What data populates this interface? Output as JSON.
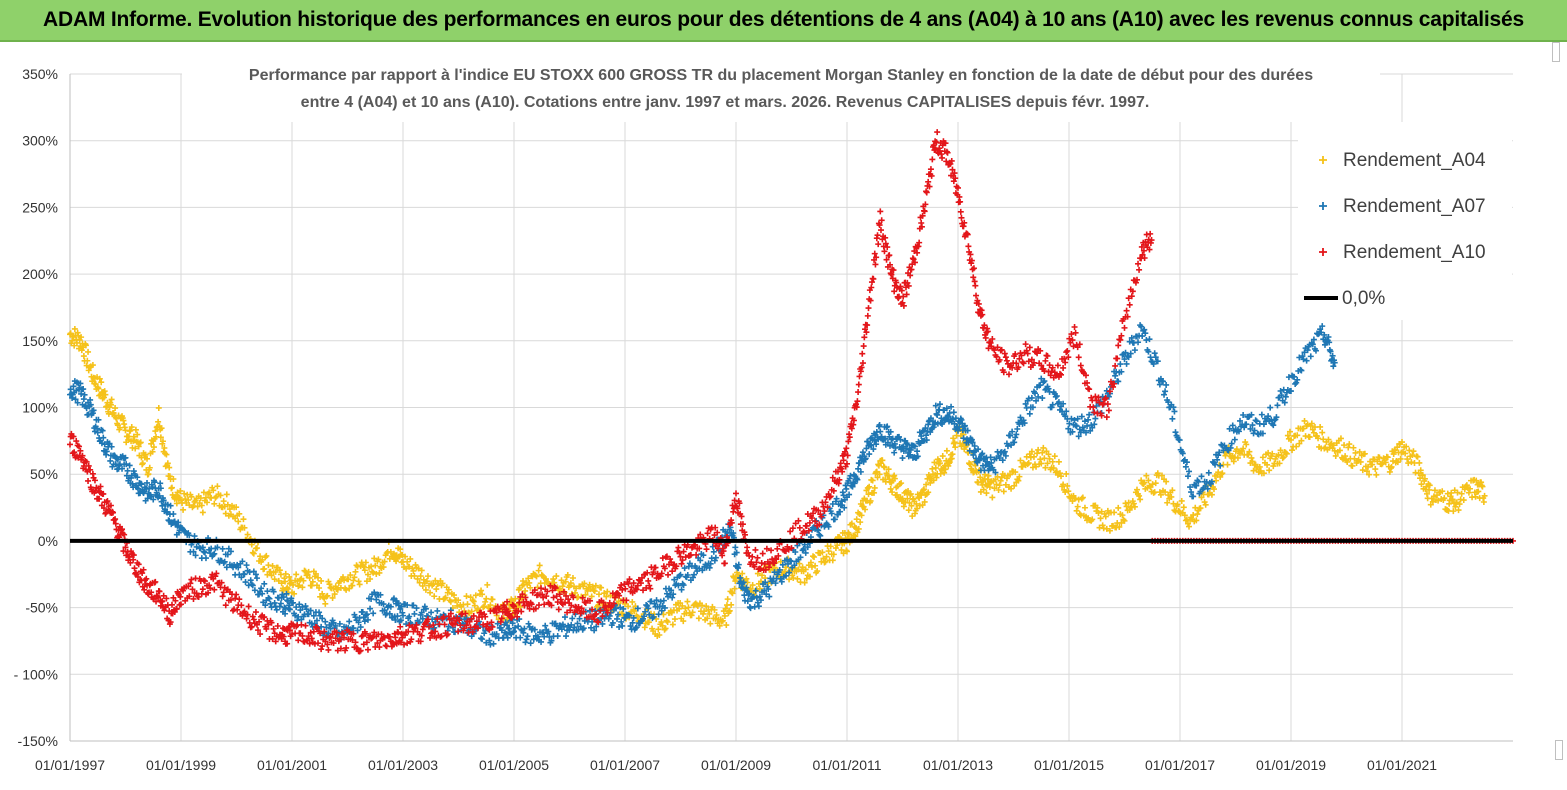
{
  "header": {
    "title": "ADAM Informe. Evolution historique des performances en euros pour des détentions de 4 ans (A04) à 10 ans (A10) avec les revenus connus capitalisés"
  },
  "chart_data": {
    "type": "scatter",
    "title_lines": [
      "Performance par rapport à l'indice EU STOXX 600 GROSS TR  du placement Morgan Stanley en fonction de la date de début pour des durées",
      "entre 4 (A04) et 10 ans (A10). Cotations entre janv. 1997 et mars. 2026. Revenus CAPITALISES depuis févr. 1997."
    ],
    "ylim": [
      -150,
      350
    ],
    "yticks": [
      350,
      300,
      250,
      200,
      150,
      100,
      50,
      0,
      -50,
      -100,
      -150
    ],
    "ytick_labels": [
      "350%",
      "300%",
      "250%",
      "200%",
      "150%",
      "100%",
      "50%",
      "0%",
      "-50%",
      "- 100%",
      "-150%"
    ],
    "xlim": [
      1997.0,
      2023.0
    ],
    "xticks": [
      1997,
      1999,
      2001,
      2003,
      2005,
      2007,
      2009,
      2011,
      2013,
      2015,
      2017,
      2019,
      2021
    ],
    "xtick_labels": [
      "01/01/1997",
      "01/01/1999",
      "01/01/2001",
      "01/01/2003",
      "01/01/2005",
      "01/01/2007",
      "01/01/2009",
      "01/01/2011",
      "01/01/2013",
      "01/01/2015",
      "01/01/2017",
      "01/01/2019",
      "01/01/2021"
    ],
    "legend_position": "top-right",
    "zero_line_label": "0,0%",
    "series": [
      {
        "name": "Rendement_A04",
        "color": "#f5c21b",
        "points": [
          [
            1997.0,
            155
          ],
          [
            1997.2,
            150
          ],
          [
            1997.4,
            125
          ],
          [
            1997.6,
            110
          ],
          [
            1997.8,
            95
          ],
          [
            1998.0,
            82
          ],
          [
            1998.2,
            75
          ],
          [
            1998.4,
            55
          ],
          [
            1998.6,
            95
          ],
          [
            1998.8,
            45
          ],
          [
            1999.0,
            30
          ],
          [
            1999.3,
            25
          ],
          [
            1999.6,
            35
          ],
          [
            1999.9,
            25
          ],
          [
            2000.2,
            5
          ],
          [
            2000.5,
            -15
          ],
          [
            2000.8,
            -30
          ],
          [
            2001.0,
            -35
          ],
          [
            2001.3,
            -25
          ],
          [
            2001.6,
            -40
          ],
          [
            2001.9,
            -30
          ],
          [
            2002.2,
            -25
          ],
          [
            2002.5,
            -20
          ],
          [
            2002.8,
            -5
          ],
          [
            2003.0,
            -15
          ],
          [
            2003.3,
            -25
          ],
          [
            2003.6,
            -35
          ],
          [
            2003.9,
            -45
          ],
          [
            2004.2,
            -50
          ],
          [
            2004.5,
            -40
          ],
          [
            2004.8,
            -55
          ],
          [
            2005.0,
            -50
          ],
          [
            2005.2,
            -35
          ],
          [
            2005.5,
            -25
          ],
          [
            2005.8,
            -30
          ],
          [
            2006.1,
            -35
          ],
          [
            2006.4,
            -40
          ],
          [
            2006.7,
            -45
          ],
          [
            2007.0,
            -50
          ],
          [
            2007.3,
            -55
          ],
          [
            2007.6,
            -65
          ],
          [
            2007.9,
            -55
          ],
          [
            2008.2,
            -50
          ],
          [
            2008.5,
            -55
          ],
          [
            2008.8,
            -60
          ],
          [
            2009.0,
            -25
          ],
          [
            2009.3,
            -35
          ],
          [
            2009.6,
            -25
          ],
          [
            2009.9,
            -20
          ],
          [
            2010.2,
            -25
          ],
          [
            2010.5,
            -15
          ],
          [
            2010.8,
            -5
          ],
          [
            2011.0,
            0
          ],
          [
            2011.2,
            15
          ],
          [
            2011.4,
            35
          ],
          [
            2011.6,
            55
          ],
          [
            2011.8,
            45
          ],
          [
            2012.0,
            35
          ],
          [
            2012.2,
            25
          ],
          [
            2012.4,
            35
          ],
          [
            2012.6,
            55
          ],
          [
            2012.8,
            60
          ],
          [
            2013.0,
            80
          ],
          [
            2013.2,
            65
          ],
          [
            2013.4,
            45
          ],
          [
            2013.6,
            40
          ],
          [
            2013.9,
            45
          ],
          [
            2014.2,
            55
          ],
          [
            2014.5,
            65
          ],
          [
            2014.8,
            55
          ],
          [
            2015.1,
            30
          ],
          [
            2015.4,
            20
          ],
          [
            2015.7,
            15
          ],
          [
            2016.0,
            20
          ],
          [
            2016.3,
            40
          ],
          [
            2016.6,
            45
          ],
          [
            2016.9,
            30
          ],
          [
            2017.2,
            15
          ],
          [
            2017.5,
            35
          ],
          [
            2017.8,
            60
          ],
          [
            2018.1,
            70
          ],
          [
            2018.4,
            55
          ],
          [
            2018.7,
            60
          ],
          [
            2019.0,
            75
          ],
          [
            2019.3,
            85
          ],
          [
            2019.6,
            75
          ],
          [
            2019.9,
            70
          ],
          [
            2020.2,
            60
          ],
          [
            2020.5,
            55
          ],
          [
            2020.8,
            60
          ],
          [
            2021.0,
            70
          ],
          [
            2021.3,
            55
          ],
          [
            2021.5,
            35
          ],
          [
            2021.8,
            30
          ],
          [
            2022.0,
            30
          ],
          [
            2022.3,
            40
          ],
          [
            2022.5,
            35
          ]
        ]
      },
      {
        "name": "Rendement_A07",
        "color": "#1f77b4",
        "points": [
          [
            1997.0,
            115
          ],
          [
            1997.2,
            110
          ],
          [
            1997.4,
            95
          ],
          [
            1997.6,
            75
          ],
          [
            1997.8,
            60
          ],
          [
            1998.0,
            55
          ],
          [
            1998.2,
            45
          ],
          [
            1998.4,
            35
          ],
          [
            1998.6,
            40
          ],
          [
            1998.8,
            20
          ],
          [
            1999.0,
            5
          ],
          [
            1999.3,
            -5
          ],
          [
            1999.6,
            -5
          ],
          [
            1999.9,
            -15
          ],
          [
            2000.2,
            -25
          ],
          [
            2000.5,
            -40
          ],
          [
            2000.8,
            -45
          ],
          [
            2001.0,
            -50
          ],
          [
            2001.3,
            -55
          ],
          [
            2001.6,
            -65
          ],
          [
            2001.9,
            -70
          ],
          [
            2002.2,
            -60
          ],
          [
            2002.5,
            -45
          ],
          [
            2002.8,
            -50
          ],
          [
            2003.0,
            -55
          ],
          [
            2003.3,
            -55
          ],
          [
            2003.6,
            -60
          ],
          [
            2003.9,
            -60
          ],
          [
            2004.2,
            -65
          ],
          [
            2004.5,
            -70
          ],
          [
            2004.8,
            -70
          ],
          [
            2005.0,
            -65
          ],
          [
            2005.3,
            -70
          ],
          [
            2005.6,
            -70
          ],
          [
            2005.9,
            -65
          ],
          [
            2006.2,
            -60
          ],
          [
            2006.5,
            -60
          ],
          [
            2006.8,
            -55
          ],
          [
            2007.1,
            -60
          ],
          [
            2007.4,
            -55
          ],
          [
            2007.7,
            -45
          ],
          [
            2008.0,
            -30
          ],
          [
            2008.3,
            -20
          ],
          [
            2008.6,
            -10
          ],
          [
            2008.9,
            10
          ],
          [
            2009.1,
            -35
          ],
          [
            2009.3,
            -45
          ],
          [
            2009.6,
            -35
          ],
          [
            2009.9,
            -20
          ],
          [
            2010.2,
            -5
          ],
          [
            2010.5,
            10
          ],
          [
            2010.8,
            25
          ],
          [
            2011.0,
            35
          ],
          [
            2011.2,
            55
          ],
          [
            2011.4,
            70
          ],
          [
            2011.6,
            85
          ],
          [
            2011.8,
            75
          ],
          [
            2012.0,
            70
          ],
          [
            2012.2,
            65
          ],
          [
            2012.4,
            80
          ],
          [
            2012.6,
            95
          ],
          [
            2012.8,
            95
          ],
          [
            2013.0,
            90
          ],
          [
            2013.2,
            75
          ],
          [
            2013.4,
            60
          ],
          [
            2013.6,
            55
          ],
          [
            2013.9,
            70
          ],
          [
            2014.2,
            95
          ],
          [
            2014.5,
            115
          ],
          [
            2014.8,
            100
          ],
          [
            2015.1,
            85
          ],
          [
            2015.4,
            90
          ],
          [
            2015.7,
            110
          ],
          [
            2016.0,
            135
          ],
          [
            2016.3,
            160
          ],
          [
            2016.6,
            130
          ],
          [
            2016.9,
            90
          ],
          [
            2017.2,
            40
          ],
          [
            2017.5,
            45
          ],
          [
            2017.8,
            70
          ],
          [
            2018.1,
            90
          ],
          [
            2018.4,
            85
          ],
          [
            2018.7,
            95
          ],
          [
            2019.0,
            120
          ],
          [
            2019.3,
            140
          ],
          [
            2019.6,
            155
          ],
          [
            2019.8,
            130
          ]
        ]
      },
      {
        "name": "Rendement_A10",
        "color": "#e3161a",
        "points": [
          [
            1997.0,
            75
          ],
          [
            1997.2,
            65
          ],
          [
            1997.4,
            45
          ],
          [
            1997.6,
            30
          ],
          [
            1997.8,
            15
          ],
          [
            1998.0,
            -5
          ],
          [
            1998.2,
            -20
          ],
          [
            1998.4,
            -35
          ],
          [
            1998.6,
            -40
          ],
          [
            1998.8,
            -55
          ],
          [
            1999.0,
            -40
          ],
          [
            1999.3,
            -35
          ],
          [
            1999.6,
            -30
          ],
          [
            1999.9,
            -45
          ],
          [
            2000.2,
            -55
          ],
          [
            2000.5,
            -65
          ],
          [
            2000.8,
            -70
          ],
          [
            2001.0,
            -70
          ],
          [
            2001.3,
            -70
          ],
          [
            2001.6,
            -75
          ],
          [
            2001.9,
            -75
          ],
          [
            2002.2,
            -75
          ],
          [
            2002.5,
            -75
          ],
          [
            2002.8,
            -73
          ],
          [
            2003.0,
            -70
          ],
          [
            2003.3,
            -68
          ],
          [
            2003.6,
            -65
          ],
          [
            2003.9,
            -62
          ],
          [
            2004.2,
            -62
          ],
          [
            2004.5,
            -60
          ],
          [
            2004.8,
            -55
          ],
          [
            2005.0,
            -50
          ],
          [
            2005.3,
            -45
          ],
          [
            2005.6,
            -40
          ],
          [
            2005.9,
            -45
          ],
          [
            2006.2,
            -50
          ],
          [
            2006.5,
            -55
          ],
          [
            2006.8,
            -45
          ],
          [
            2007.1,
            -35
          ],
          [
            2007.4,
            -30
          ],
          [
            2007.7,
            -20
          ],
          [
            2008.0,
            -10
          ],
          [
            2008.3,
            -5
          ],
          [
            2008.6,
            5
          ],
          [
            2008.8,
            -10
          ],
          [
            2009.0,
            35
          ],
          [
            2009.2,
            -10
          ],
          [
            2009.5,
            -15
          ],
          [
            2009.8,
            -5
          ],
          [
            2010.2,
            10
          ],
          [
            2010.5,
            20
          ],
          [
            2010.8,
            45
          ],
          [
            2011.0,
            65
          ],
          [
            2011.2,
            110
          ],
          [
            2011.4,
            180
          ],
          [
            2011.6,
            240
          ],
          [
            2011.8,
            200
          ],
          [
            2012.0,
            180
          ],
          [
            2012.2,
            210
          ],
          [
            2012.4,
            250
          ],
          [
            2012.6,
            300
          ],
          [
            2012.8,
            290
          ],
          [
            2013.0,
            260
          ],
          [
            2013.2,
            220
          ],
          [
            2013.4,
            170
          ],
          [
            2013.6,
            145
          ],
          [
            2013.9,
            130
          ],
          [
            2014.2,
            140
          ],
          [
            2014.5,
            135
          ],
          [
            2014.8,
            125
          ],
          [
            2015.1,
            155
          ],
          [
            2015.4,
            105
          ],
          [
            2015.7,
            100
          ],
          [
            2016.0,
            165
          ],
          [
            2016.3,
            215
          ],
          [
            2016.5,
            230
          ]
        ]
      }
    ]
  }
}
